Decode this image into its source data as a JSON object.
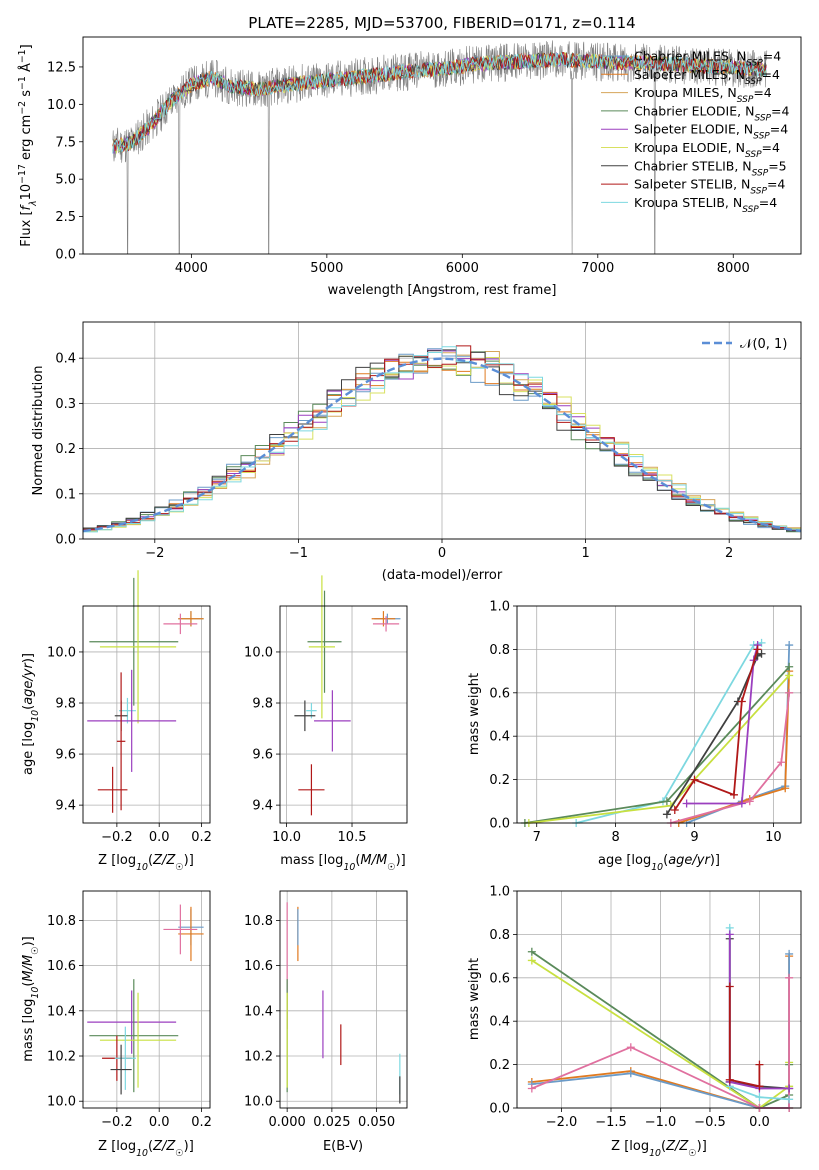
{
  "chart_data": [
    {
      "type": "line",
      "panel": "spectrum",
      "title": "PLATE=2285, MJD=53700, FIBERID=0171, z=0.114",
      "xlabel": "wavelength [Angstrom, rest frame]",
      "ylabel": "Flux [f_λ 10⁻¹⁷ erg cm⁻² s⁻¹ Å⁻¹]",
      "xlim": [
        3200,
        8500
      ],
      "ylim": [
        0,
        14.5
      ],
      "xticks": [
        4000,
        5000,
        6000,
        7000,
        8000
      ],
      "yticks": [
        0.0,
        2.5,
        5.0,
        7.5,
        10.0,
        12.5
      ],
      "legend_position": "right",
      "data_x": [
        3420,
        3550,
        3700,
        3850,
        4000,
        4150,
        4300,
        4500,
        4700,
        4900,
        5100,
        5300,
        5500,
        5700,
        5900,
        6100,
        6300,
        6500,
        6700,
        6900,
        7100,
        7300,
        7500,
        7700,
        7900,
        8100,
        8250
      ],
      "data_y": [
        7.2,
        7.4,
        8.6,
        10.2,
        11.3,
        11.8,
        11.2,
        11.0,
        11.3,
        11.5,
        11.7,
        11.9,
        12.1,
        12.3,
        12.4,
        12.7,
        12.8,
        12.9,
        13.0,
        12.9,
        12.8,
        12.8,
        12.7,
        12.6,
        12.5,
        12.4,
        12.3
      ],
      "absorption_dips": [
        {
          "x": 3530,
          "y": 0
        },
        {
          "x": 3910,
          "y": 0
        },
        {
          "x": 4570,
          "y": 0
        },
        {
          "x": 6810,
          "y": 0
        },
        {
          "x": 7420,
          "y": 0
        }
      ],
      "series": [
        {
          "name": "Chabrier MILES, N",
          "sub": "SSP",
          "suffix": "=4",
          "color": "#6b9bc8"
        },
        {
          "name": "Salpeter MILES, N",
          "sub": "SSP",
          "suffix": "=4",
          "color": "#e07a20"
        },
        {
          "name": "Kroupa MILES, N",
          "sub": "SSP",
          "suffix": "=4",
          "color": "#d6a55a"
        },
        {
          "name": "Chabrier ELODIE, N",
          "sub": "SSP",
          "suffix": "=4",
          "color": "#5a8a5a"
        },
        {
          "name": "Salpeter ELODIE, N",
          "sub": "SSP",
          "suffix": "=4",
          "color": "#9b3fbf"
        },
        {
          "name": "Kroupa ELODIE, N",
          "sub": "SSP",
          "suffix": "=4",
          "color": "#d8e060"
        },
        {
          "name": "Chabrier STELIB, N",
          "sub": "SSP",
          "suffix": "=5",
          "color": "#404040"
        },
        {
          "name": "Salpeter STELIB, N",
          "sub": "SSP",
          "suffix": "=4",
          "color": "#b01818"
        },
        {
          "name": "Kroupa STELIB, N",
          "sub": "SSP",
          "suffix": "=4",
          "color": "#7dd8e0"
        }
      ]
    },
    {
      "type": "histogram",
      "panel": "residuals",
      "xlabel": "(data-model)/error",
      "ylabel": "Normed distribution",
      "xlim": [
        -2.5,
        2.5
      ],
      "ylim": [
        0,
        0.48
      ],
      "xticks": [
        -2,
        -1,
        0,
        1,
        2
      ],
      "yticks": [
        0.0,
        0.1,
        0.2,
        0.3,
        0.4
      ],
      "bin_width": 0.1,
      "grid": true,
      "legend": "𝒩(0, 1)",
      "legend_position": "top-right",
      "normal_curve_color": "#5b8ed6"
    },
    {
      "type": "errorbar",
      "panel": "age-vs-Z",
      "xlabel": "Z [log₁₀(Z/Z☉)]",
      "ylabel": "age  [log₁₀(age/yr)]",
      "xlim": [
        -0.36,
        0.24
      ],
      "ylim": [
        9.33,
        10.18
      ],
      "xticks": [
        -0.2,
        0.0,
        0.2
      ],
      "yticks": [
        9.4,
        9.6,
        9.8,
        10.0
      ],
      "grid": true,
      "points": [
        {
          "x": 0.15,
          "y": 10.13,
          "xerr": 0.06,
          "yerr": 0.03,
          "color": "#7dd8e0"
        },
        {
          "x": 0.15,
          "y": 10.13,
          "xerr": 0.06,
          "yerr": 0.03,
          "color": "#e07a20"
        },
        {
          "x": 0.1,
          "y": 10.11,
          "xerr": 0.08,
          "yerr": 0.04,
          "color": "#e0709f"
        },
        {
          "x": -0.12,
          "y": 10.04,
          "xerr": 0.21,
          "yerr": 0.25,
          "color": "#5a8a5a"
        },
        {
          "x": -0.1,
          "y": 10.02,
          "xerr": 0.18,
          "yerr": 0.3,
          "color": "#c8e040"
        },
        {
          "x": -0.15,
          "y": 9.77,
          "xerr": 0.04,
          "yerr": 0.05,
          "color": "#7dd8e0"
        },
        {
          "x": -0.18,
          "y": 9.75,
          "xerr": 0.03,
          "yerr": 0.06,
          "color": "#404040"
        },
        {
          "x": -0.13,
          "y": 9.73,
          "xerr": 0.21,
          "yerr": 0.2,
          "color": "#9b3fbf"
        },
        {
          "x": -0.22,
          "y": 9.46,
          "xerr": 0.07,
          "yerr": 0.09,
          "color": "#b01818"
        },
        {
          "x": -0.18,
          "y": 9.65,
          "xerr": 0.02,
          "yerr": 0.27,
          "color": "#b01818"
        }
      ]
    },
    {
      "type": "errorbar",
      "panel": "age-vs-mass",
      "xlabel": "mass [log₁₀(M/M☉)]",
      "xlim": [
        9.95,
        10.92
      ],
      "ylim": [
        9.33,
        10.18
      ],
      "xticks": [
        10.0,
        10.5
      ],
      "yticks": [
        9.4,
        9.6,
        9.8,
        10.0
      ],
      "grid": true,
      "points": [
        {
          "x": 10.77,
          "y": 10.13,
          "xerr": 0.1,
          "yerr": 0.02,
          "color": "#6b9bc8"
        },
        {
          "x": 10.74,
          "y": 10.13,
          "xerr": 0.09,
          "yerr": 0.03,
          "color": "#e07a20"
        },
        {
          "x": 10.76,
          "y": 10.11,
          "xerr": 0.1,
          "yerr": 0.03,
          "color": "#e0709f"
        },
        {
          "x": 10.29,
          "y": 10.04,
          "xerr": 0.13,
          "yerr": 0.2,
          "color": "#5a8a5a"
        },
        {
          "x": 10.27,
          "y": 10.02,
          "xerr": 0.1,
          "yerr": 0.28,
          "color": "#c8e040"
        },
        {
          "x": 10.19,
          "y": 9.77,
          "xerr": 0.04,
          "yerr": 0.03,
          "color": "#7dd8e0"
        },
        {
          "x": 10.14,
          "y": 9.75,
          "xerr": 0.08,
          "yerr": 0.06,
          "color": "#404040"
        },
        {
          "x": 10.35,
          "y": 9.73,
          "xerr": 0.14,
          "yerr": 0.12,
          "color": "#9b3fbf"
        },
        {
          "x": 10.19,
          "y": 9.46,
          "xerr": 0.1,
          "yerr": 0.1,
          "color": "#b01818"
        }
      ]
    },
    {
      "type": "line",
      "panel": "mass-weight-vs-age",
      "xlabel": "age  [log₁₀(age/yr)]",
      "ylabel": "mass weight",
      "xlim": [
        6.75,
        10.35
      ],
      "ylim": [
        0,
        1.0
      ],
      "xticks": [
        7,
        8,
        9,
        10
      ],
      "yticks": [
        0.0,
        0.2,
        0.4,
        0.6,
        0.8,
        1.0
      ],
      "grid": true,
      "series": [
        {
          "color": "#7dd8e0",
          "x": [
            7.5,
            8.6,
            9.75,
            9.85
          ],
          "y": [
            0.0,
            0.1,
            0.82,
            0.83
          ]
        },
        {
          "color": "#6b9bc8",
          "x": [
            8.9,
            9.6,
            10.15,
            10.2
          ],
          "y": [
            0.0,
            0.1,
            0.17,
            0.82
          ]
        },
        {
          "color": "#e07a20",
          "x": [
            8.8,
            9.7,
            10.15,
            10.2
          ],
          "y": [
            0.0,
            0.11,
            0.16,
            0.7
          ]
        },
        {
          "color": "#e0709f",
          "x": [
            8.7,
            9.7,
            10.1,
            10.2
          ],
          "y": [
            0.0,
            0.1,
            0.28,
            0.6
          ]
        },
        {
          "color": "#5a8a5a",
          "x": [
            6.85,
            8.65,
            10.2
          ],
          "y": [
            0.0,
            0.1,
            0.72
          ]
        },
        {
          "color": "#c8e040",
          "x": [
            6.9,
            8.7,
            10.2
          ],
          "y": [
            0.0,
            0.08,
            0.68
          ]
        },
        {
          "color": "#404040",
          "x": [
            8.65,
            9.55,
            9.8,
            9.85
          ],
          "y": [
            0.04,
            0.56,
            0.77,
            0.78
          ]
        },
        {
          "color": "#9b3fbf",
          "x": [
            8.9,
            9.6,
            9.75,
            9.8
          ],
          "y": [
            0.09,
            0.09,
            0.75,
            0.82
          ]
        },
        {
          "color": "#b01818",
          "x": [
            8.75,
            9.0,
            9.5,
            9.6,
            9.8
          ],
          "y": [
            0.06,
            0.2,
            0.13,
            0.56,
            0.8
          ]
        }
      ]
    },
    {
      "type": "errorbar",
      "panel": "mass-vs-Z",
      "xlabel": "Z [log₁₀(Z/Z☉)]",
      "ylabel": "mass [log₁₀(M/M☉)]",
      "xlim": [
        -0.36,
        0.24
      ],
      "ylim": [
        9.97,
        10.93
      ],
      "xticks": [
        -0.2,
        0.0,
        0.2
      ],
      "yticks": [
        10.0,
        10.2,
        10.4,
        10.6,
        10.8
      ],
      "grid": true,
      "points": [
        {
          "x": 0.15,
          "y": 10.77,
          "xerr": 0.06,
          "yerr": 0.08,
          "color": "#6b9bc8"
        },
        {
          "x": 0.15,
          "y": 10.74,
          "xerr": 0.06,
          "yerr": 0.12,
          "color": "#e07a20"
        },
        {
          "x": 0.1,
          "y": 10.76,
          "xerr": 0.08,
          "yerr": 0.11,
          "color": "#e0709f"
        },
        {
          "x": -0.13,
          "y": 10.35,
          "xerr": 0.21,
          "yerr": 0.14,
          "color": "#9b3fbf"
        },
        {
          "x": -0.12,
          "y": 10.29,
          "xerr": 0.21,
          "yerr": 0.25,
          "color": "#5a8a5a"
        },
        {
          "x": -0.1,
          "y": 10.27,
          "xerr": 0.18,
          "yerr": 0.21,
          "color": "#c8e040"
        },
        {
          "x": -0.2,
          "y": 10.19,
          "xerr": 0.07,
          "yerr": 0.1,
          "color": "#b01818"
        },
        {
          "x": -0.16,
          "y": 10.19,
          "xerr": 0.05,
          "yerr": 0.14,
          "color": "#7dd8e0"
        },
        {
          "x": -0.18,
          "y": 10.14,
          "xerr": 0.05,
          "yerr": 0.11,
          "color": "#404040"
        }
      ]
    },
    {
      "type": "errorbar",
      "panel": "mass-vs-EBV",
      "xlabel": "E(B-V)",
      "xlim": [
        -0.004,
        0.067
      ],
      "ylim": [
        9.97,
        10.93
      ],
      "xticks": [
        0.0,
        0.025,
        0.05
      ],
      "xtick_labels": [
        "0.000",
        "0.025",
        "0.050"
      ],
      "yticks": [
        10.0,
        10.2,
        10.4,
        10.6,
        10.8
      ],
      "grid": true,
      "points": [
        {
          "x": 0.0,
          "y": 10.6,
          "yerr": 0.28,
          "color": "#e0709f"
        },
        {
          "x": 0.006,
          "y": 10.74,
          "yerr": 0.12,
          "color": "#e07a20"
        },
        {
          "x": 0.006,
          "y": 10.77,
          "yerr": 0.08,
          "color": "#6b9bc8"
        },
        {
          "x": 0.0,
          "y": 10.29,
          "yerr": 0.25,
          "color": "#5a8a5a"
        },
        {
          "x": 0.0,
          "y": 10.27,
          "yerr": 0.21,
          "color": "#c8e040"
        },
        {
          "x": 0.02,
          "y": 10.34,
          "yerr": 0.15,
          "color": "#9b3fbf"
        },
        {
          "x": 0.03,
          "y": 10.25,
          "yerr": 0.09,
          "color": "#b01818"
        },
        {
          "x": 0.063,
          "y": 10.12,
          "yerr": 0.09,
          "color": "#7dd8e0"
        },
        {
          "x": 0.063,
          "y": 10.05,
          "yerr": 0.06,
          "color": "#404040"
        }
      ]
    },
    {
      "type": "line",
      "panel": "mass-weight-vs-Z",
      "xlabel": "Z [log₁₀(Z/Z☉)]",
      "ylabel": "mass weight",
      "xlim": [
        -2.45,
        0.42
      ],
      "ylim": [
        0,
        1.0
      ],
      "xticks": [
        -2.0,
        -1.5,
        -1.0,
        -0.5,
        0.0
      ],
      "grid": true,
      "yticks": [
        0.0,
        0.2,
        0.4,
        0.6,
        0.8,
        1.0
      ],
      "series": [
        {
          "color": "#5a8a5a",
          "x": [
            -2.3,
            0.0,
            0.3,
            0.3
          ],
          "y": [
            0.72,
            0.0,
            0.06,
            0.2
          ]
        },
        {
          "color": "#c8e040",
          "x": [
            -2.3,
            0.0,
            0.3,
            0.3
          ],
          "y": [
            0.68,
            0.0,
            0.1,
            0.21
          ]
        },
        {
          "color": "#e07a20",
          "x": [
            -2.3,
            -1.3,
            0.0,
            0.3,
            0.3
          ],
          "y": [
            0.12,
            0.17,
            0.0,
            0.0,
            0.7
          ]
        },
        {
          "color": "#6b9bc8",
          "x": [
            -2.3,
            -1.3,
            0.0,
            0.3,
            0.3
          ],
          "y": [
            0.11,
            0.16,
            0.0,
            0.0,
            0.71
          ]
        },
        {
          "color": "#e0709f",
          "x": [
            -2.3,
            -1.3,
            0.0,
            0.3,
            0.3
          ],
          "y": [
            0.09,
            0.28,
            0.0,
            0.0,
            0.6
          ]
        },
        {
          "color": "#7dd8e0",
          "x": [
            -0.3,
            -0.3,
            0.0,
            0.3
          ],
          "y": [
            0.83,
            0.1,
            0.05,
            0.04
          ]
        },
        {
          "color": "#404040",
          "x": [
            -0.3,
            -0.3,
            0.0,
            0.3
          ],
          "y": [
            0.78,
            0.12,
            0.1,
            0.09
          ]
        },
        {
          "color": "#9b3fbf",
          "x": [
            -0.3,
            -0.3,
            0.0,
            0.3
          ],
          "y": [
            0.8,
            0.12,
            0.09,
            0.09
          ]
        },
        {
          "color": "#b01818",
          "x": [
            -0.3,
            -0.3,
            0.0,
            0.0
          ],
          "y": [
            0.56,
            0.13,
            0.1,
            0.2
          ]
        }
      ]
    }
  ]
}
